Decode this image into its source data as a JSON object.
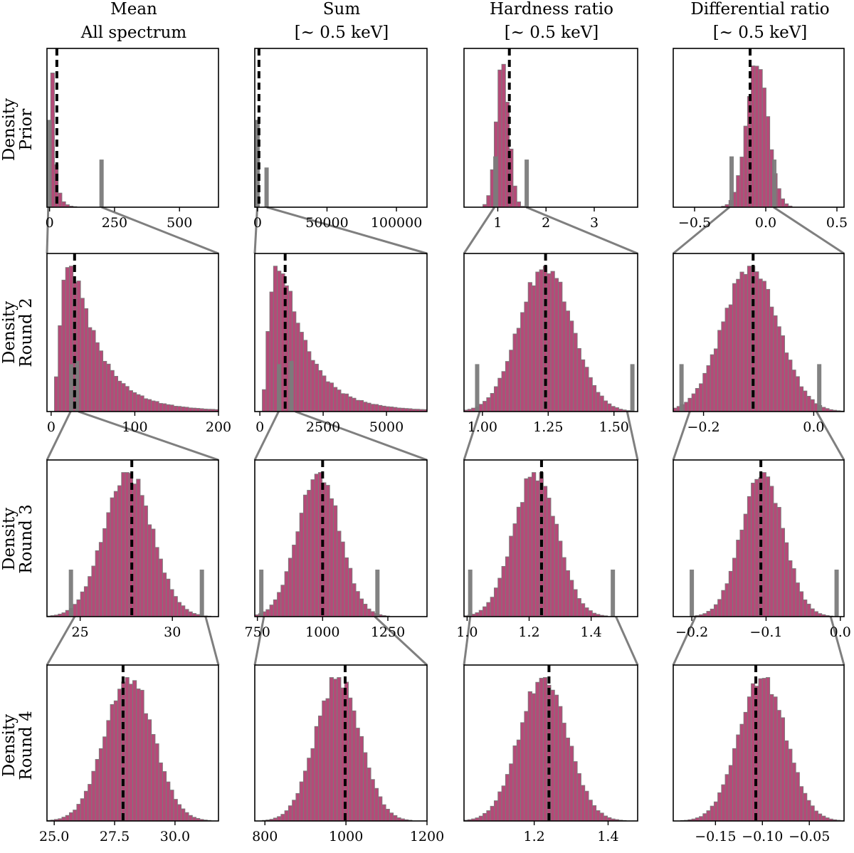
{
  "colors": {
    "bar_fill": "#b54a78",
    "bar_edge": "#7b7b7b",
    "truth_line": "#000000",
    "zoom_line": "#7f7f7f",
    "axes": "#000000"
  },
  "column_titles": [
    {
      "line1": "Mean",
      "line2": "All spectrum"
    },
    {
      "line1": "Sum",
      "line2": "[~ 0.5 keV]"
    },
    {
      "line1": "Hardness ratio",
      "line2": "[~ 0.5 keV]"
    },
    {
      "line1": "Differential ratio",
      "line2": "[~ 0.5 keV]"
    }
  ],
  "row_labels": [
    {
      "line1": "Density",
      "line2": "Prior"
    },
    {
      "line1": "Density",
      "line2": "Round 2"
    },
    {
      "line1": "Density",
      "line2": "Round 3"
    },
    {
      "line1": "Density",
      "line2": "Round 4"
    }
  ],
  "chart_data": [
    {
      "type": "bar",
      "row": 0,
      "col": 0,
      "title": "Mean All spectrum",
      "ylabel": "Density Prior",
      "dist": "skew",
      "xlim": [
        -10,
        650
      ],
      "ticks": [
        0,
        250,
        500
      ],
      "tick_labels": [
        "0",
        "250",
        "500"
      ],
      "truth": 28,
      "peak": 8,
      "scale": 40,
      "grey_bars": [
        [
          0,
          0.55
        ],
        [
          200,
          0.3
        ]
      ]
    },
    {
      "type": "bar",
      "row": 0,
      "col": 1,
      "title": "Sum [~ 0.5 keV]",
      "ylabel": "",
      "dist": "skew",
      "xlim": [
        -2000,
        122000
      ],
      "ticks": [
        0,
        50000,
        100000
      ],
      "tick_labels": [
        "0",
        "50000",
        "100000"
      ],
      "truth": 1000,
      "peak": 100,
      "scale": 3000,
      "grey_bars": [
        [
          0,
          0.55
        ],
        [
          6500,
          0.25
        ]
      ]
    },
    {
      "type": "bar",
      "row": 0,
      "col": 2,
      "title": "Hardness ratio [~ 0.5 keV]",
      "ylabel": "",
      "dist": "normal",
      "xlim": [
        0.3,
        3.9
      ],
      "ticks": [
        1,
        2,
        3
      ],
      "tick_labels": [
        "1",
        "2",
        "3"
      ],
      "truth": 1.24,
      "mu": 1.1,
      "sigma": 0.13,
      "grey_bars": [
        [
          0.95,
          0.32
        ],
        [
          1.6,
          0.3
        ]
      ]
    },
    {
      "type": "bar",
      "row": 0,
      "col": 3,
      "title": "Differential ratio [~ 0.5 keV]",
      "ylabel": "",
      "dist": "normal",
      "xlim": [
        -0.65,
        0.55
      ],
      "ticks": [
        -0.5,
        0,
        0.5
      ],
      "tick_labels": [
        "−0.5",
        "0.0",
        "0.5"
      ],
      "truth": -0.11,
      "mu": -0.06,
      "sigma": 0.075,
      "grey_bars": [
        [
          -0.24,
          0.32
        ],
        [
          0.06,
          0.3
        ]
      ]
    },
    {
      "type": "bar",
      "row": 1,
      "col": 0,
      "title": "Mean All spectrum",
      "ylabel": "Density Round 2",
      "dist": "skew",
      "xlim": [
        -5,
        200
      ],
      "ticks": [
        0,
        100,
        200
      ],
      "tick_labels": [
        "0",
        "100",
        "200"
      ],
      "truth": 28,
      "peak": 22,
      "scale": 18,
      "grey_bars": [
        [
          24,
          0.3
        ],
        [
          31,
          0.32
        ]
      ]
    },
    {
      "type": "bar",
      "row": 1,
      "col": 1,
      "title": "Sum [~ 0.5 keV]",
      "ylabel": "",
      "dist": "skew",
      "xlim": [
        -200,
        6600
      ],
      "ticks": [
        0,
        2500,
        5000
      ],
      "tick_labels": [
        "0",
        "2500",
        "5000"
      ],
      "truth": 1000,
      "peak": 720,
      "scale": 650,
      "grey_bars": [
        [
          760,
          0.3
        ],
        [
          1250,
          0.32
        ]
      ]
    },
    {
      "type": "bar",
      "row": 1,
      "col": 2,
      "title": "Hardness ratio [~ 0.5 keV]",
      "ylabel": "",
      "dist": "normal",
      "xlim": [
        0.93,
        1.59
      ],
      "ticks": [
        1.0,
        1.25,
        1.5
      ],
      "tick_labels": [
        "1.00",
        "1.25",
        "1.50"
      ],
      "truth": 1.24,
      "mu": 1.24,
      "sigma": 0.1,
      "grey_bars": [
        [
          0.98,
          0.3
        ],
        [
          1.57,
          0.3
        ]
      ]
    },
    {
      "type": "bar",
      "row": 1,
      "col": 3,
      "title": "Differential ratio [~ 0.5 keV]",
      "ylabel": "",
      "dist": "normal",
      "xlim": [
        -0.255,
        0.055
      ],
      "ticks": [
        -0.2,
        0.0
      ],
      "tick_labels": [
        "−0.2",
        "0.0"
      ],
      "truth": -0.11,
      "mu": -0.115,
      "sigma": 0.05,
      "grey_bars": [
        [
          -0.24,
          0.3
        ],
        [
          0.01,
          0.3
        ]
      ]
    },
    {
      "type": "bar",
      "row": 2,
      "col": 0,
      "title": "Mean All spectrum",
      "ylabel": "Density Round 3",
      "dist": "normal",
      "xlim": [
        23.2,
        32.5
      ],
      "ticks": [
        25,
        30
      ],
      "tick_labels": [
        "25",
        "30"
      ],
      "truth": 27.8,
      "mu": 27.6,
      "sigma": 1.3,
      "grey_bars": [
        [
          24.5,
          0.3
        ],
        [
          31.6,
          0.3
        ]
      ]
    },
    {
      "type": "bar",
      "row": 2,
      "col": 1,
      "title": "Sum [~ 0.5 keV]",
      "ylabel": "",
      "dist": "normal",
      "xlim": [
        740,
        1400
      ],
      "ticks": [
        750,
        1000,
        1250
      ],
      "tick_labels": [
        "750",
        "1000",
        "1250"
      ],
      "truth": 1000,
      "mu": 985,
      "sigma": 80,
      "grey_bars": [
        [
          765,
          0.3
        ],
        [
          1210,
          0.3
        ]
      ]
    },
    {
      "type": "bar",
      "row": 2,
      "col": 2,
      "title": "Hardness ratio [~ 0.5 keV]",
      "ylabel": "",
      "dist": "normal",
      "xlim": [
        0.99,
        1.55
      ],
      "ticks": [
        1.0,
        1.2,
        1.4
      ],
      "tick_labels": [
        "1.0",
        "1.2",
        "1.4"
      ],
      "truth": 1.24,
      "mu": 1.22,
      "sigma": 0.07,
      "grey_bars": [
        [
          1.01,
          0.3
        ],
        [
          1.47,
          0.3
        ]
      ]
    },
    {
      "type": "bar",
      "row": 2,
      "col": 3,
      "title": "Differential ratio [~ 0.5 keV]",
      "ylabel": "",
      "dist": "normal",
      "xlim": [
        -0.225,
        0.005
      ],
      "ticks": [
        -0.2,
        -0.1,
        0.0
      ],
      "tick_labels": [
        "−0.2",
        "−0.1",
        "0.0"
      ],
      "truth": -0.107,
      "mu": -0.105,
      "sigma": 0.028,
      "grey_bars": [
        [
          -0.2,
          0.3
        ],
        [
          -0.005,
          0.3
        ]
      ]
    },
    {
      "type": "bar",
      "row": 3,
      "col": 0,
      "title": "Mean All spectrum",
      "ylabel": "Density Round 4",
      "dist": "normal",
      "xlim": [
        24.7,
        31.8
      ],
      "ticks": [
        25.0,
        27.5,
        30.0
      ],
      "tick_labels": [
        "25.0",
        "27.5",
        "30.0"
      ],
      "truth": 27.85,
      "mu": 28.1,
      "sigma": 1.0,
      "grey_bars": []
    },
    {
      "type": "bar",
      "row": 3,
      "col": 1,
      "title": "Sum [~ 0.5 keV]",
      "ylabel": "",
      "dist": "normal",
      "xlim": [
        775,
        1200
      ],
      "ticks": [
        800,
        1000,
        1200
      ],
      "tick_labels": [
        "800",
        "1000",
        "1200"
      ],
      "truth": 998,
      "mu": 980,
      "sigma": 55,
      "grey_bars": []
    },
    {
      "type": "bar",
      "row": 3,
      "col": 2,
      "title": "Hardness ratio [~ 0.5 keV]",
      "ylabel": "",
      "dist": "normal",
      "xlim": [
        1.01,
        1.48
      ],
      "ticks": [
        1.2,
        1.4
      ],
      "tick_labels": [
        "1.2",
        "1.4"
      ],
      "truth": 1.24,
      "mu": 1.225,
      "sigma": 0.065,
      "grey_bars": []
    },
    {
      "type": "bar",
      "row": 3,
      "col": 3,
      "title": "Differential ratio [~ 0.5 keV]",
      "ylabel": "",
      "dist": "normal",
      "xlim": [
        -0.195,
        -0.013
      ],
      "ticks": [
        -0.15,
        -0.1,
        -0.05
      ],
      "tick_labels": [
        "−0.15",
        "−0.10",
        "−0.05"
      ],
      "truth": -0.107,
      "mu": -0.1,
      "sigma": 0.025,
      "grey_bars": []
    }
  ]
}
